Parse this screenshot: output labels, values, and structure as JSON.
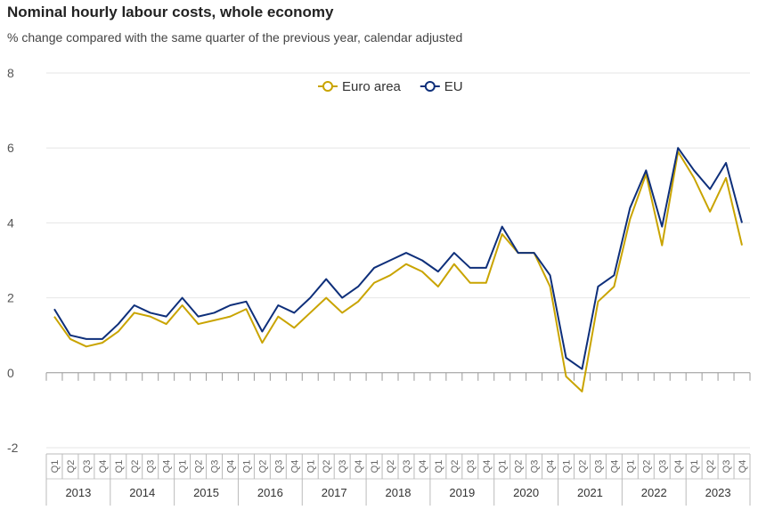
{
  "chart_data": {
    "type": "line",
    "title": "Nominal hourly labour costs, whole economy",
    "subtitle": "% change compared with the same quarter of the previous year, calendar adjusted",
    "ylim": [
      -2,
      8
    ],
    "yticks": [
      8,
      6,
      4,
      2,
      0,
      -2
    ],
    "grid": true,
    "legend_position": "top-center",
    "years": [
      "2013",
      "2014",
      "2015",
      "2016",
      "2017",
      "2018",
      "2019",
      "2020",
      "2021",
      "2022",
      "2023"
    ],
    "quarters": [
      "Q1",
      "Q2",
      "Q3",
      "Q4"
    ],
    "x": [
      "2013Q1",
      "2013Q2",
      "2013Q3",
      "2013Q4",
      "2014Q1",
      "2014Q2",
      "2014Q3",
      "2014Q4",
      "2015Q1",
      "2015Q2",
      "2015Q3",
      "2015Q4",
      "2016Q1",
      "2016Q2",
      "2016Q3",
      "2016Q4",
      "2017Q1",
      "2017Q2",
      "2017Q3",
      "2017Q4",
      "2018Q1",
      "2018Q2",
      "2018Q3",
      "2018Q4",
      "2019Q1",
      "2019Q2",
      "2019Q3",
      "2019Q4",
      "2020Q1",
      "2020Q2",
      "2020Q3",
      "2020Q4",
      "2021Q1",
      "2021Q2",
      "2021Q3",
      "2021Q4",
      "2022Q1",
      "2022Q2",
      "2022Q3",
      "2022Q4",
      "2023Q1",
      "2023Q2",
      "2023Q3",
      "2023Q4"
    ],
    "series": [
      {
        "name": "Euro area",
        "color": "#c9a400",
        "values": [
          1.5,
          0.9,
          0.7,
          0.8,
          1.1,
          1.6,
          1.5,
          1.3,
          1.8,
          1.3,
          1.4,
          1.5,
          1.7,
          0.8,
          1.5,
          1.2,
          1.6,
          2.0,
          1.6,
          1.9,
          2.4,
          2.6,
          2.9,
          2.7,
          2.3,
          2.9,
          2.4,
          2.4,
          3.7,
          3.2,
          3.2,
          2.3,
          -0.1,
          -0.5,
          1.9,
          2.3,
          4.1,
          5.3,
          3.4,
          5.9,
          5.2,
          4.3,
          5.2,
          3.4
        ]
      },
      {
        "name": "EU",
        "color": "#0e2f7a",
        "values": [
          1.7,
          1.0,
          0.9,
          0.9,
          1.3,
          1.8,
          1.6,
          1.5,
          2.0,
          1.5,
          1.6,
          1.8,
          1.9,
          1.1,
          1.8,
          1.6,
          2.0,
          2.5,
          2.0,
          2.3,
          2.8,
          3.0,
          3.2,
          3.0,
          2.7,
          3.2,
          2.8,
          2.8,
          3.9,
          3.2,
          3.2,
          2.6,
          0.4,
          0.1,
          2.3,
          2.6,
          4.4,
          5.4,
          3.9,
          6.0,
          5.4,
          4.9,
          5.6,
          4.0
        ]
      }
    ]
  }
}
